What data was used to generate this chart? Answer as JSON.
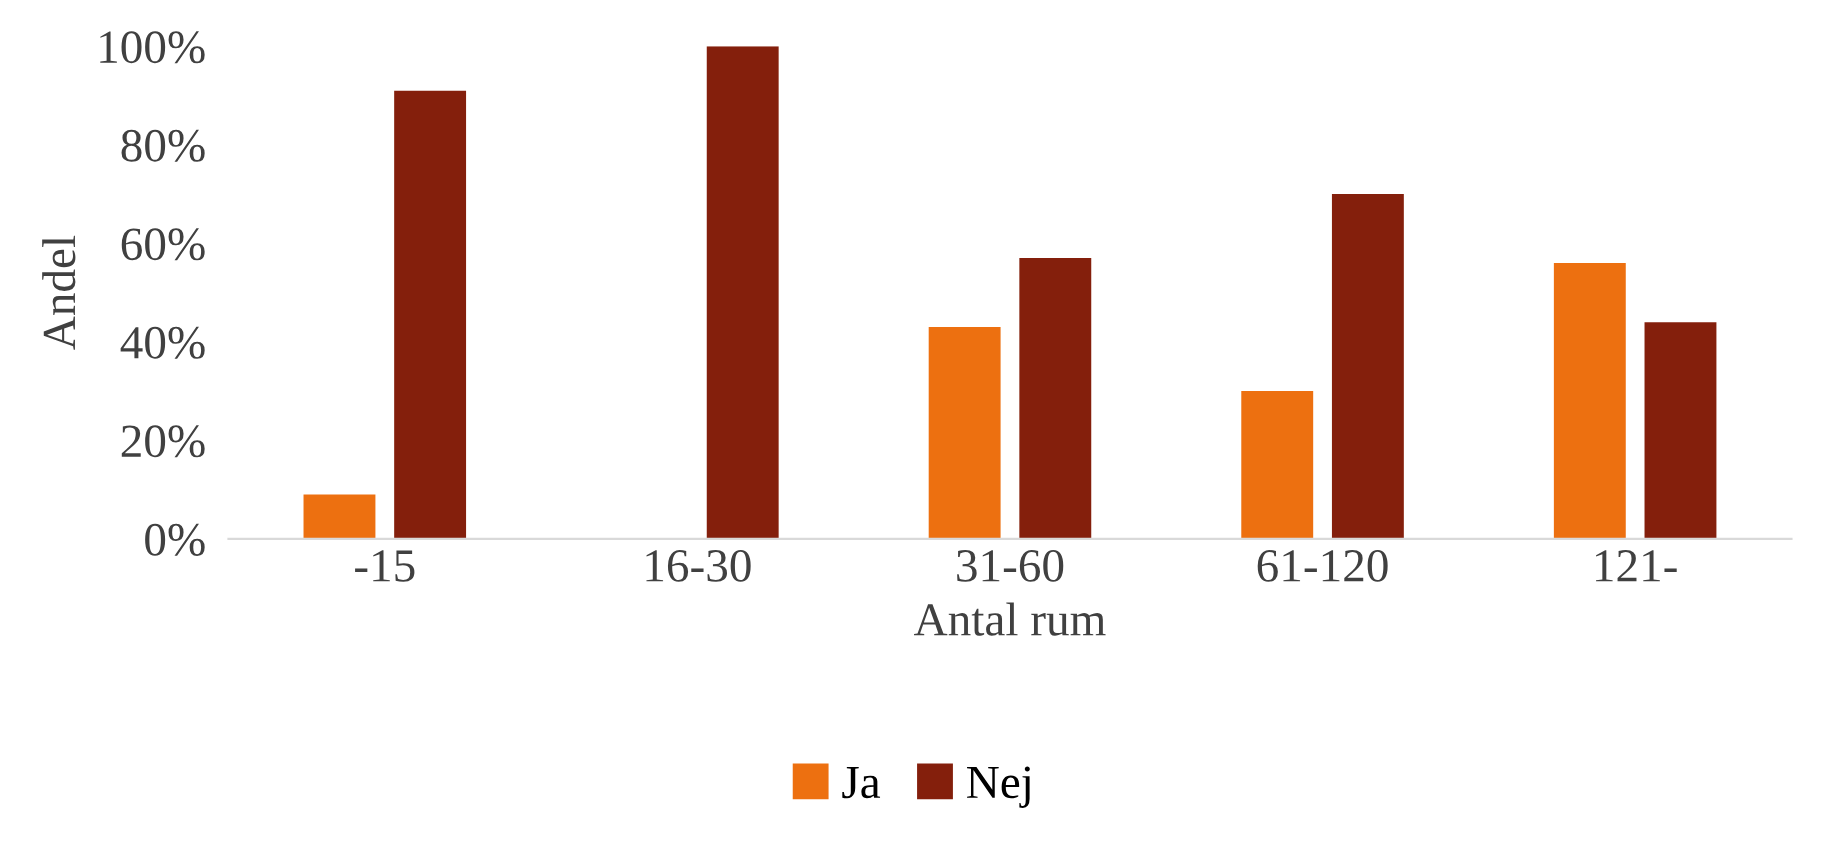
{
  "chart_data": {
    "type": "bar",
    "xlabel": "Antal rum",
    "ylabel": "Andel",
    "categories": [
      "-15",
      "16-30",
      "31-60",
      "61-120",
      "121-"
    ],
    "series": [
      {
        "name": "Ja",
        "color": "#ed7010",
        "values": [
          9,
          0,
          43,
          30,
          56
        ]
      },
      {
        "name": "Nej",
        "color": "#841f0c",
        "values": [
          91,
          100,
          57,
          70,
          44
        ]
      }
    ],
    "ylim": [
      0,
      100
    ],
    "yticks": [
      {
        "value": 0,
        "label": "0%"
      },
      {
        "value": 20,
        "label": "20%"
      },
      {
        "value": 40,
        "label": "40%"
      },
      {
        "value": 60,
        "label": "60%"
      },
      {
        "value": 80,
        "label": "80%"
      },
      {
        "value": 100,
        "label": "100%"
      }
    ],
    "grid": false,
    "legend": "bottom"
  }
}
